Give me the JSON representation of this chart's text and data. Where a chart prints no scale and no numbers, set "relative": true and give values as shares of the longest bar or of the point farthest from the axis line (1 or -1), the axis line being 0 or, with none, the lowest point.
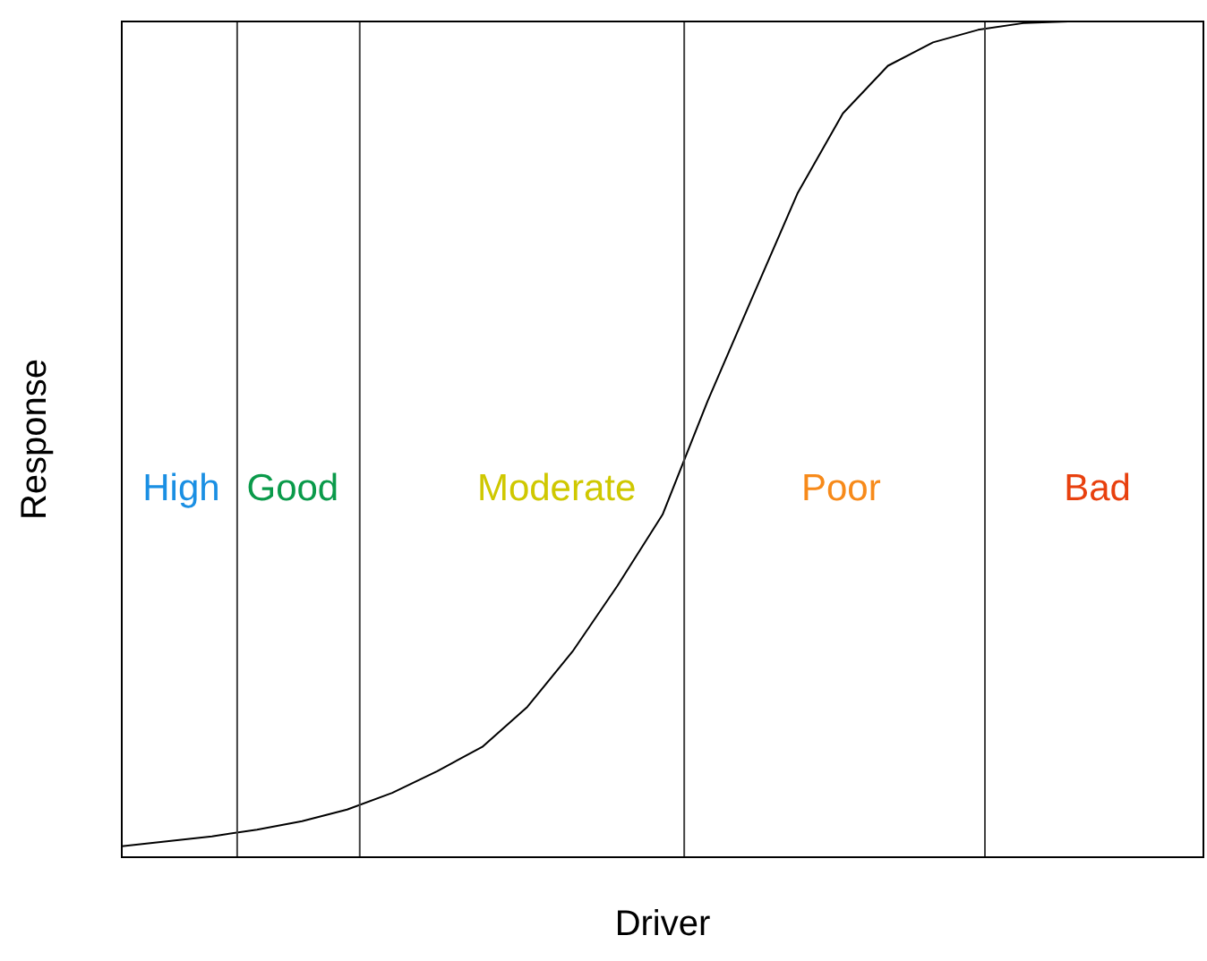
{
  "chart_data": {
    "type": "line",
    "xlabel": "Driver",
    "ylabel": "Response",
    "relative": true,
    "marker": "none",
    "legend": false,
    "categories": [
      null,
      null,
      null,
      null,
      null,
      null,
      null,
      null,
      null,
      null,
      null,
      null,
      null,
      null,
      null,
      null,
      null,
      null,
      null,
      null,
      null,
      null,
      null,
      null,
      null
    ],
    "series": [
      {
        "color": "#000000",
        "values": [
          0.013,
          0.019,
          0.025,
          0.033,
          0.043,
          0.057,
          0.077,
          0.103,
          0.132,
          0.18,
          0.246,
          0.325,
          0.41,
          0.546,
          0.671,
          0.795,
          0.89,
          0.947,
          0.975,
          0.99,
          0.998,
          1,
          1,
          1,
          1
        ]
      }
    ],
    "annotations": [
      "High",
      "Good",
      "Moderate",
      "Poor",
      "Bad"
    ]
  }
}
